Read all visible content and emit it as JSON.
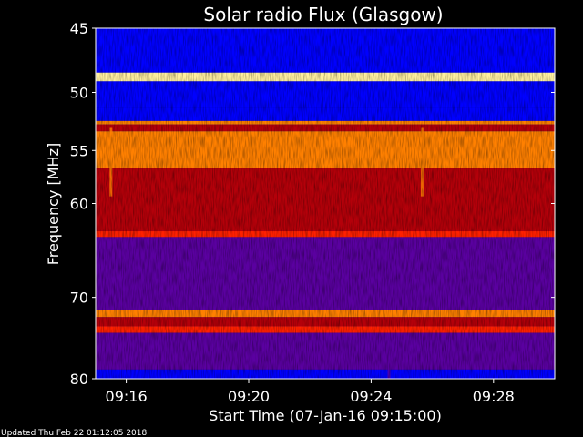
{
  "chart_data": {
    "type": "heatmap",
    "title": "Solar radio Flux (Glasgow)",
    "xlabel": "Start Time (07-Jan-16 09:15:00)",
    "ylabel": "Frequency [MHz]",
    "x_ticks": [
      "09:16",
      "09:20",
      "09:24",
      "09:28"
    ],
    "y_ticks": [
      45,
      50,
      55,
      60,
      70,
      80
    ],
    "xlim": [
      "09:15:00",
      "09:30:00"
    ],
    "ylim": [
      45,
      80
    ],
    "y_scale": "log",
    "y_direction": "downward",
    "colormap": [
      "#00008c",
      "#0000ff",
      "#5a00a0",
      "#b4000a",
      "#ff2000",
      "#ff8000",
      "#fff0a0"
    ],
    "bands": [
      {
        "from": 45,
        "to": 48.4,
        "level": 1.0
      },
      {
        "from": 48.4,
        "to": 49.1,
        "level": 6.0
      },
      {
        "from": 49.1,
        "to": 51.3,
        "level": 1.1
      },
      {
        "from": 51.3,
        "to": 52.4,
        "level": 0.6
      },
      {
        "from": 52.4,
        "to": 52.7,
        "level": 4.6
      },
      {
        "from": 52.7,
        "to": 53.3,
        "level": 3.4
      },
      {
        "from": 53.3,
        "to": 56.6,
        "level": 4.7
      },
      {
        "from": 56.6,
        "to": 62.8,
        "level": 3.3
      },
      {
        "from": 62.8,
        "to": 63.4,
        "level": 4.3
      },
      {
        "from": 63.4,
        "to": 71.5,
        "level": 2.3
      },
      {
        "from": 71.5,
        "to": 72.3,
        "level": 5.3
      },
      {
        "from": 72.3,
        "to": 73.4,
        "level": 2.7
      },
      {
        "from": 73.4,
        "to": 74.2,
        "level": 4.2
      },
      {
        "from": 74.2,
        "to": 78.8,
        "level": 1.9
      },
      {
        "from": 78.8,
        "to": 80,
        "level": 1.3
      }
    ],
    "bursts": [
      {
        "time": "09:15:30",
        "freq_from": 53,
        "freq_to": 59.3,
        "level": 5.2
      },
      {
        "time": "09:25:40",
        "freq_from": 53,
        "freq_to": 59.3,
        "level": 5.2
      },
      {
        "time": "09:24:35",
        "freq_from": 76,
        "freq_to": 80,
        "level": 1.6
      }
    ]
  },
  "footer": {
    "updated": "Updated Thu Feb 22 01:12:05 2018"
  }
}
